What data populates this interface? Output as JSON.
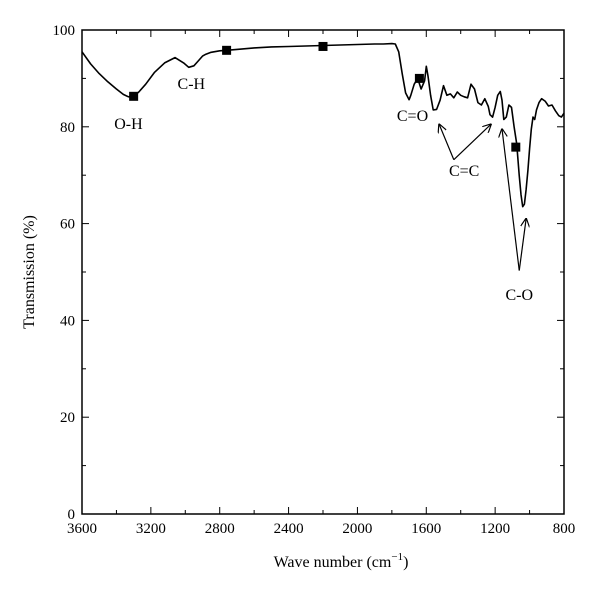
{
  "chart_data": {
    "type": "line",
    "title": "",
    "xlabel": "Wave number (cm",
    "xlabel_sup": "−1",
    "xlabel_close": ")",
    "ylabel": "Transmission (%)",
    "xlim": [
      3600,
      800
    ],
    "ylim": [
      0,
      100
    ],
    "x_reversed": true,
    "grid": false,
    "x_ticks": [
      "3600",
      "3200",
      "2800",
      "2400",
      "2000",
      "1600",
      "1200",
      "800"
    ],
    "y_ticks": [
      "0",
      "20",
      "40",
      "60",
      "80",
      "100"
    ],
    "series": [
      {
        "x": [
          3600,
          3550,
          3500,
          3450,
          3400,
          3360,
          3330,
          3300,
          3270,
          3230,
          3180,
          3120,
          3060,
          3010,
          2980,
          2950,
          2925,
          2900,
          2880,
          2850,
          2800,
          2760,
          2700,
          2600,
          2500,
          2400,
          2300,
          2200,
          2100,
          2000,
          1900,
          1850,
          1800,
          1780,
          1760,
          1740,
          1720,
          1700,
          1690,
          1670,
          1650,
          1630,
          1610,
          1600,
          1590,
          1575,
          1560,
          1540,
          1520,
          1500,
          1480,
          1460,
          1440,
          1420,
          1400,
          1380,
          1360,
          1340,
          1320,
          1300,
          1280,
          1260,
          1240,
          1230,
          1215,
          1200,
          1185,
          1170,
          1160,
          1150,
          1135,
          1120,
          1105,
          1090,
          1075,
          1060,
          1050,
          1040,
          1030,
          1020,
          1010,
          1000,
          990,
          980,
          970,
          960,
          945,
          930,
          910,
          890,
          870,
          850,
          830,
          815,
          800
        ],
        "y": [
          95.5,
          93,
          91,
          89.3,
          87.8,
          86.7,
          86.2,
          86.3,
          87.2,
          88.8,
          91.2,
          93.2,
          94.3,
          93.2,
          92.3,
          92.6,
          93.6,
          94.6,
          95,
          95.4,
          95.7,
          95.8,
          96,
          96.3,
          96.5,
          96.6,
          96.7,
          96.8,
          96.9,
          97,
          97.1,
          97.1,
          97.2,
          97.1,
          95.5,
          91,
          87,
          85.6,
          86.5,
          88.8,
          90,
          87.8,
          89.5,
          92.5,
          90.5,
          86.5,
          83.5,
          83.6,
          85.5,
          88.5,
          86.5,
          86.8,
          86,
          87.2,
          86.5,
          86.2,
          86,
          88.8,
          87.8,
          85,
          84.5,
          85.8,
          84.2,
          82.5,
          82,
          84,
          86.5,
          87.3,
          85.5,
          81.5,
          82,
          84.5,
          84,
          80,
          76.5,
          70,
          66,
          63.5,
          64,
          67,
          71,
          75.5,
          79.5,
          82,
          81.5,
          83.5,
          85,
          85.8,
          85.3,
          84.3,
          84.5,
          83.3,
          82.3,
          82,
          82.8
        ]
      }
    ],
    "markers": [
      {
        "x": 3300,
        "y": 86.3
      },
      {
        "x": 2760,
        "y": 95.8
      },
      {
        "x": 2200,
        "y": 96.6
      },
      {
        "x": 1640,
        "y": 90
      },
      {
        "x": 1080,
        "y": 75.8
      }
    ],
    "annotations": [
      {
        "text": "O-H",
        "x": 3330,
        "y": 79.5
      },
      {
        "text": "C-H",
        "x": 2965,
        "y": 87.8
      },
      {
        "text": "C=O",
        "x": 1680,
        "y": 81.2
      },
      {
        "text": "C=C",
        "x": 1380,
        "y": 69.8
      },
      {
        "text": "C-O",
        "x": 1060,
        "y": 44.2
      }
    ],
    "arrows": [
      {
        "from": [
          1440,
          73.2
        ],
        "to": [
          1525,
          80.5
        ]
      },
      {
        "from": [
          1440,
          73.2
        ],
        "to": [
          1225,
          80.5
        ]
      },
      {
        "from": [
          1060,
          50.3
        ],
        "to": [
          1160,
          79.5
        ]
      },
      {
        "from": [
          1060,
          50.3
        ],
        "to": [
          1020,
          61
        ]
      }
    ]
  }
}
